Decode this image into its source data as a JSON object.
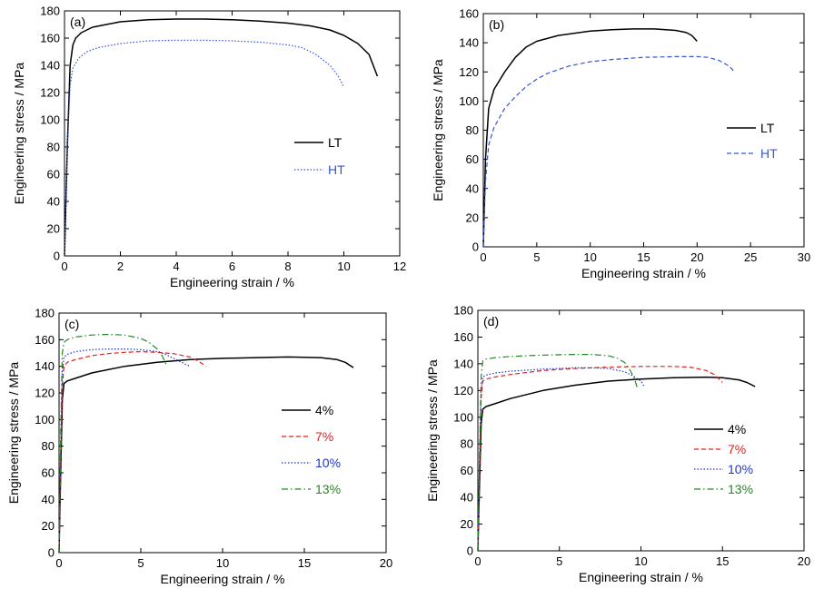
{
  "chart_data": [
    {
      "type": "line",
      "panel_label": "(a)",
      "xlabel": "Engineering strain / %",
      "ylabel": "Engineering stress / MPa",
      "xlim": [
        0,
        12
      ],
      "ylim": [
        0,
        180
      ],
      "xticks": [
        0,
        2,
        4,
        6,
        8,
        10,
        12
      ],
      "yticks": [
        0,
        20,
        40,
        60,
        80,
        100,
        120,
        140,
        160,
        180
      ],
      "legend_position": "center-right",
      "series": [
        {
          "name": "LT",
          "color": "#000000",
          "dash": "solid",
          "x": [
            0,
            0.1,
            0.2,
            0.3,
            0.4,
            0.6,
            1,
            1.5,
            2,
            3,
            4,
            4.5,
            5,
            6,
            7,
            8,
            8.8,
            9.5,
            10,
            10.5,
            10.9,
            11.2
          ],
          "y": [
            0,
            80,
            140,
            155,
            160,
            164,
            168,
            170,
            172,
            173.5,
            174,
            174,
            174,
            173.5,
            172.5,
            171,
            169,
            166,
            162,
            156,
            148,
            132
          ]
        },
        {
          "name": "HT",
          "color": "#3355dd",
          "dash": "dotted",
          "x": [
            0,
            0.1,
            0.2,
            0.3,
            0.5,
            0.8,
            1.2,
            2,
            3,
            4,
            5,
            6,
            7,
            8,
            8.5,
            9,
            9.5,
            9.8,
            10
          ],
          "y": [
            0,
            80,
            125,
            138,
            145,
            150,
            153,
            156,
            158,
            158.5,
            158.5,
            158,
            157,
            155,
            153,
            148,
            140,
            132,
            124
          ]
        }
      ]
    },
    {
      "type": "line",
      "panel_label": "(b)",
      "xlabel": "Engineering strain / %",
      "ylabel": "Engineering stress / MPa",
      "xlim": [
        0,
        30
      ],
      "ylim": [
        0,
        160
      ],
      "xticks": [
        0,
        5,
        10,
        15,
        20,
        25,
        30
      ],
      "yticks": [
        0,
        20,
        40,
        60,
        80,
        100,
        120,
        140,
        160
      ],
      "legend_position": "center-right",
      "series": [
        {
          "name": "LT",
          "color": "#000000",
          "dash": "solid",
          "x": [
            0,
            0.2,
            0.5,
            1,
            2,
            3,
            4,
            5,
            7,
            10,
            12,
            14,
            16,
            18,
            19,
            19.5,
            20
          ],
          "y": [
            0,
            60,
            95,
            108,
            120,
            130,
            137,
            141,
            145,
            148,
            149,
            149.5,
            149.5,
            148.5,
            147,
            145,
            141
          ]
        },
        {
          "name": "HT",
          "color": "#3355dd",
          "dash": "dashed",
          "x": [
            0,
            0.2,
            0.5,
            1,
            2,
            3,
            4,
            5,
            6,
            8,
            10,
            12,
            15,
            18,
            20,
            21,
            22,
            23,
            23.5
          ],
          "y": [
            0,
            45,
            70,
            82,
            95,
            103,
            110,
            115,
            119,
            124,
            127,
            128.5,
            130,
            130.5,
            130.5,
            130,
            128,
            124,
            120
          ]
        }
      ]
    },
    {
      "type": "line",
      "panel_label": "(c)",
      "xlabel": "Engineering strain / %",
      "ylabel": "Engineering stress / MPa",
      "xlim": [
        0,
        20
      ],
      "ylim": [
        0,
        180
      ],
      "xticks": [
        0,
        5,
        10,
        15,
        20
      ],
      "yticks": [
        0,
        20,
        40,
        60,
        80,
        100,
        120,
        140,
        160,
        180
      ],
      "legend_position": "center-right",
      "series": [
        {
          "name": "4%",
          "color": "#000000",
          "dash": "solid",
          "x": [
            0,
            0.1,
            0.2,
            0.3,
            0.5,
            1,
            2,
            4,
            6,
            8,
            10,
            12,
            14,
            16,
            17,
            17.5,
            18
          ],
          "y": [
            0,
            60,
            115,
            127,
            129,
            131,
            135,
            140,
            143,
            145,
            146,
            146.5,
            147,
            146.5,
            145,
            143,
            139
          ]
        },
        {
          "name": "7%",
          "color": "#dd2222",
          "dash": "dashed",
          "x": [
            0,
            0.1,
            0.2,
            0.3,
            0.5,
            1,
            2,
            3,
            4,
            5,
            6,
            7,
            8,
            8.5,
            9
          ],
          "y": [
            0,
            70,
            125,
            140,
            143,
            145,
            148,
            149.5,
            150.5,
            151,
            150.5,
            149.5,
            147,
            144,
            140
          ]
        },
        {
          "name": "10%",
          "color": "#2233cc",
          "dash": "dotted",
          "x": [
            0,
            0.1,
            0.2,
            0.3,
            0.5,
            1,
            2,
            3,
            4,
            5,
            6,
            6.5,
            7,
            7.5,
            8
          ],
          "y": [
            0,
            80,
            135,
            147,
            149,
            151,
            152.5,
            153,
            153,
            152.5,
            151,
            149,
            146,
            143,
            140
          ]
        },
        {
          "name": "13%",
          "color": "#228822",
          "dash": "dashdot",
          "x": [
            0,
            0.1,
            0.2,
            0.3,
            0.5,
            1,
            2,
            3,
            4,
            5,
            5.5,
            6,
            6.3,
            6.6
          ],
          "y": [
            0,
            90,
            150,
            158,
            160,
            162,
            163.5,
            164,
            163.5,
            161,
            158,
            153,
            148,
            140
          ]
        }
      ]
    },
    {
      "type": "line",
      "panel_label": "(d)",
      "xlabel": "Engineering strain / %",
      "ylabel": "Engineering stress / MPa",
      "xlim": [
        0,
        20
      ],
      "ylim": [
        0,
        180
      ],
      "xticks": [
        0,
        5,
        10,
        15,
        20
      ],
      "yticks": [
        0,
        20,
        40,
        60,
        80,
        100,
        120,
        140,
        160,
        180
      ],
      "legend_position": "center-right",
      "series": [
        {
          "name": "4%",
          "color": "#000000",
          "dash": "solid",
          "x": [
            0,
            0.1,
            0.2,
            0.3,
            0.5,
            1,
            2,
            4,
            6,
            8,
            10,
            12,
            14,
            15,
            16,
            16.5,
            17
          ],
          "y": [
            0,
            50,
            95,
            106,
            108,
            110,
            114,
            120,
            124,
            127,
            128.5,
            129.5,
            130,
            129.5,
            128,
            126,
            123
          ]
        },
        {
          "name": "7%",
          "color": "#dd2222",
          "dash": "dashed",
          "x": [
            0,
            0.1,
            0.2,
            0.3,
            0.5,
            1,
            2,
            4,
            6,
            8,
            10,
            12,
            13,
            14,
            14.5,
            15
          ],
          "y": [
            0,
            60,
            115,
            127,
            128.5,
            130,
            132,
            135,
            136.5,
            137.5,
            138,
            138,
            137.5,
            135,
            132,
            126
          ]
        },
        {
          "name": "10%",
          "color": "#2233cc",
          "dash": "dotted",
          "x": [
            0,
            0.1,
            0.2,
            0.3,
            0.5,
            1,
            2,
            4,
            6,
            7,
            8,
            9,
            9.5,
            10,
            10.2
          ],
          "y": [
            0,
            65,
            120,
            130,
            131.5,
            133,
            134.5,
            136,
            137,
            137,
            136.5,
            134,
            131,
            127,
            123
          ]
        },
        {
          "name": "13%",
          "color": "#228822",
          "dash": "dashdot",
          "x": [
            0,
            0.1,
            0.2,
            0.3,
            0.5,
            1,
            2,
            4,
            6,
            7,
            8,
            8.5,
            9,
            9.3,
            9.6,
            9.8
          ],
          "y": [
            0,
            70,
            130,
            142,
            143.5,
            144.5,
            145.5,
            146.5,
            147,
            147,
            146,
            144.5,
            141,
            136,
            129,
            121
          ]
        }
      ]
    }
  ]
}
